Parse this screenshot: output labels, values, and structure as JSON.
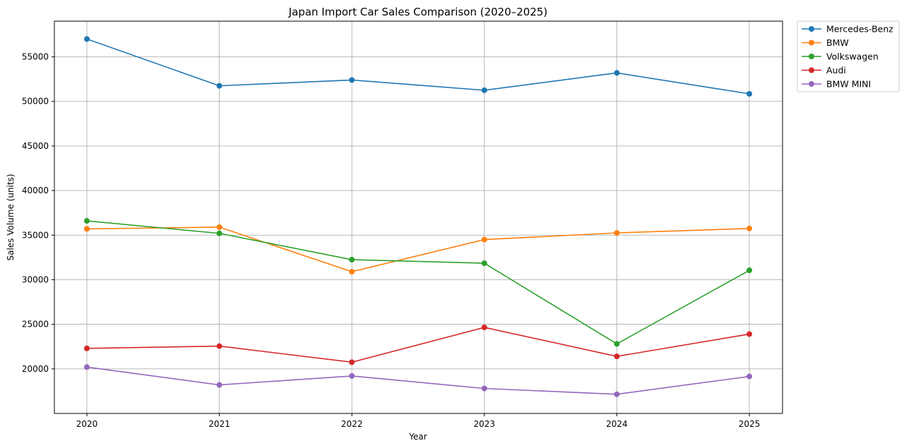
{
  "chart_data": {
    "type": "line",
    "title": "Japan Import Car Sales Comparison (2020–2025)",
    "xlabel": "Year",
    "ylabel": "Sales Volume (units)",
    "x": [
      "2020",
      "2021",
      "2022",
      "2023",
      "2024",
      "2025"
    ],
    "yticks": [
      20000,
      25000,
      30000,
      35000,
      40000,
      45000,
      50000,
      55000
    ],
    "ylim": [
      15000,
      59000
    ],
    "grid": true,
    "legend_position": "outside-top-right",
    "series": [
      {
        "name": "Mercedes-Benz",
        "color": "#1f77b4",
        "values": [
          57000,
          51750,
          52400,
          51250,
          53200,
          50850
        ]
      },
      {
        "name": "BMW",
        "color": "#ff7f0e",
        "values": [
          35700,
          35900,
          30900,
          34500,
          35250,
          35750
        ]
      },
      {
        "name": "Volkswagen",
        "color": "#2ca02c",
        "values": [
          36600,
          35200,
          32250,
          31850,
          22800,
          31050
        ]
      },
      {
        "name": "Audi",
        "color": "#d62728",
        "values": [
          22300,
          22550,
          20750,
          24650,
          21400,
          23900
        ]
      },
      {
        "name": "BMW MINI",
        "color": "#9467bd",
        "values": [
          20200,
          18200,
          19200,
          17800,
          17150,
          19150
        ]
      }
    ]
  }
}
